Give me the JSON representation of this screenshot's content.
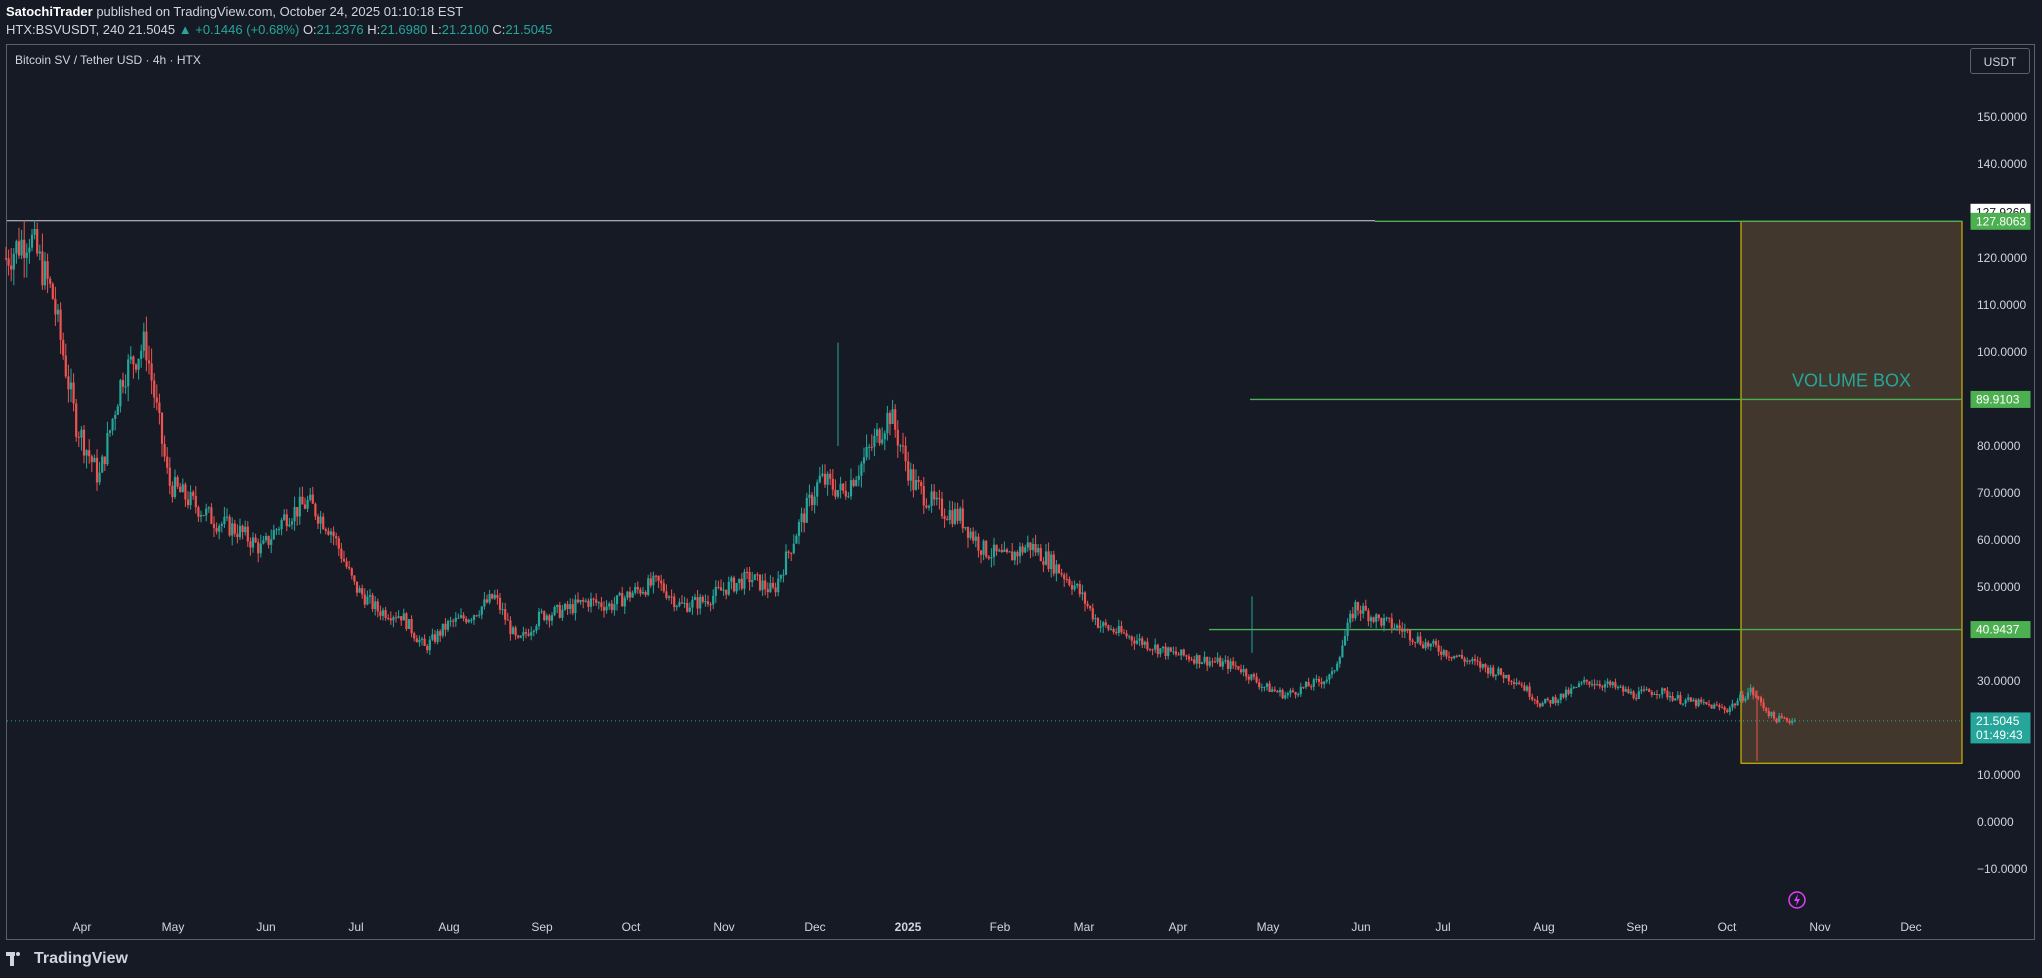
{
  "header": {
    "line1": {
      "author": "SatochiTrader",
      "rest": " published on TradingView.com, October 24, 2025 01:10:18 EST"
    },
    "line2": {
      "symbol": "HTX:BSVUSDT, 240",
      "price": "21.5045",
      "change": "▲ +0.1446 (+0.68%)",
      "o_label": "O:",
      "o": "21.2376",
      "h_label": "H:",
      "h": "21.6980",
      "l_label": "L:",
      "l": "21.2100",
      "c_label": "C:",
      "c": "21.5045"
    }
  },
  "chart_title": "Bitcoin SV / Tether USD · 4h · HTX",
  "currency_button": "USDT",
  "footer": {
    "brand": "TradingView"
  },
  "colors": {
    "background": "#161a25",
    "up": "#26a69a",
    "down": "#ef5350",
    "level_line": "#4caf50",
    "volume_box_border": "#f0d000",
    "volume_box_fill": "#4a3d2f",
    "volume_box_text": "#26a69a",
    "grid": "#1e222d"
  },
  "chart_data": {
    "type": "candlestick",
    "title": "Bitcoin SV / Tether USD · 4h · HTX",
    "ylim": [
      -15,
      170
    ],
    "y_ticks": [
      -10,
      0,
      10,
      20,
      30,
      40,
      50,
      60,
      70,
      80,
      90,
      100,
      110,
      120,
      130,
      140,
      150
    ],
    "y_tick_labels": [
      "−10.0000",
      "0.0000",
      "10.0000",
      "20.0000",
      "30.0000",
      "40.0000",
      "50.0000",
      "60.0000",
      "70.0000",
      "80.0000",
      "90.0000",
      "100.0000",
      "110.0000",
      "120.0000",
      "130.0000",
      "140.0000",
      "150.0000"
    ],
    "x_tick_labels": [
      "Apr",
      "May",
      "Jun",
      "Jul",
      "Aug",
      "Sep",
      "Oct",
      "Nov",
      "Dec",
      "2025",
      "Feb",
      "Mar",
      "Apr",
      "May",
      "Jun",
      "Jul",
      "Aug",
      "Sep",
      "Oct",
      "Nov",
      "Dec"
    ],
    "grid": false,
    "price_path": [
      [
        "Apr",
        120
      ],
      [
        "Apr",
        125
      ],
      [
        "Apr",
        112
      ],
      [
        "Apr",
        85
      ],
      [
        "Apr",
        73
      ],
      [
        "Apr",
        95
      ],
      [
        "Apr",
        102
      ],
      [
        "May",
        72
      ],
      [
        "May",
        68
      ],
      [
        "May",
        64
      ],
      [
        "May",
        62
      ],
      [
        "May",
        58
      ],
      [
        "May",
        65
      ],
      [
        "Jun",
        68
      ],
      [
        "Jun",
        62
      ],
      [
        "Jun",
        50
      ],
      [
        "Jun",
        45
      ],
      [
        "Jun",
        44
      ],
      [
        "Jul",
        37
      ],
      [
        "Jul",
        42
      ],
      [
        "Jul",
        44
      ],
      [
        "Aug",
        48
      ],
      [
        "Aug",
        38
      ],
      [
        "Aug",
        44
      ],
      [
        "Aug",
        45
      ],
      [
        "Sep",
        47
      ],
      [
        "Sep",
        46
      ],
      [
        "Sep",
        49
      ],
      [
        "Oct",
        51
      ],
      [
        "Oct",
        46
      ],
      [
        "Oct",
        47
      ],
      [
        "Oct",
        50
      ],
      [
        "Nov",
        52
      ],
      [
        "Nov",
        49
      ],
      [
        "Nov",
        62
      ],
      [
        "Nov",
        73
      ],
      [
        "Nov",
        70
      ],
      [
        "Dec",
        78
      ],
      [
        "Dec",
        87
      ],
      [
        "Dec",
        72
      ],
      [
        "Dec",
        67
      ],
      [
        "Dec",
        65
      ],
      [
        "2025",
        58
      ],
      [
        "2025",
        56
      ],
      [
        "2025",
        59
      ],
      [
        "2025",
        55
      ],
      [
        "2025",
        50
      ],
      [
        "Feb",
        42
      ],
      [
        "Feb",
        40
      ],
      [
        "Feb",
        38
      ],
      [
        "Feb",
        36
      ],
      [
        "Mar",
        35
      ],
      [
        "Mar",
        34
      ],
      [
        "Mar",
        33
      ],
      [
        "Apr",
        29
      ],
      [
        "Apr",
        27
      ],
      [
        "Apr",
        29
      ],
      [
        "Apr",
        31
      ],
      [
        "Apr",
        46
      ],
      [
        "May",
        43
      ],
      [
        "May",
        41
      ],
      [
        "May",
        38
      ],
      [
        "May",
        36
      ],
      [
        "Jun",
        34
      ],
      [
        "Jun",
        32
      ],
      [
        "Jun",
        30
      ],
      [
        "Jul",
        25
      ],
      [
        "Jul",
        27
      ],
      [
        "Jul",
        30
      ],
      [
        "Aug",
        29
      ],
      [
        "Aug",
        27
      ],
      [
        "Aug",
        28
      ],
      [
        "Sep",
        26
      ],
      [
        "Sep",
        25
      ],
      [
        "Sep",
        24
      ],
      [
        "Oct",
        28
      ],
      [
        "Oct",
        22
      ],
      [
        "Oct",
        21.5
      ]
    ],
    "notable_spikes": [
      {
        "near": "Dec",
        "high": 102
      },
      {
        "near": "Apr 2025",
        "high": 48
      },
      {
        "near": "Oct 2025",
        "low": 13
      }
    ],
    "horizontal_levels": [
      {
        "value": 127.8063,
        "label": "127.8063"
      },
      {
        "value": 89.9103,
        "label": "89.9103"
      },
      {
        "value": 40.9437,
        "label": "40.9437"
      }
    ],
    "white_level": {
      "value": 127.926,
      "label": "127.9260"
    },
    "current_price": {
      "value": 21.5045,
      "label": "21.5045",
      "countdown": "01:49:43"
    },
    "volume_box": {
      "label": "VOLUME BOX",
      "top": 127.8063,
      "bottom": 12.5,
      "from": "Oct",
      "to": "Dec"
    }
  }
}
